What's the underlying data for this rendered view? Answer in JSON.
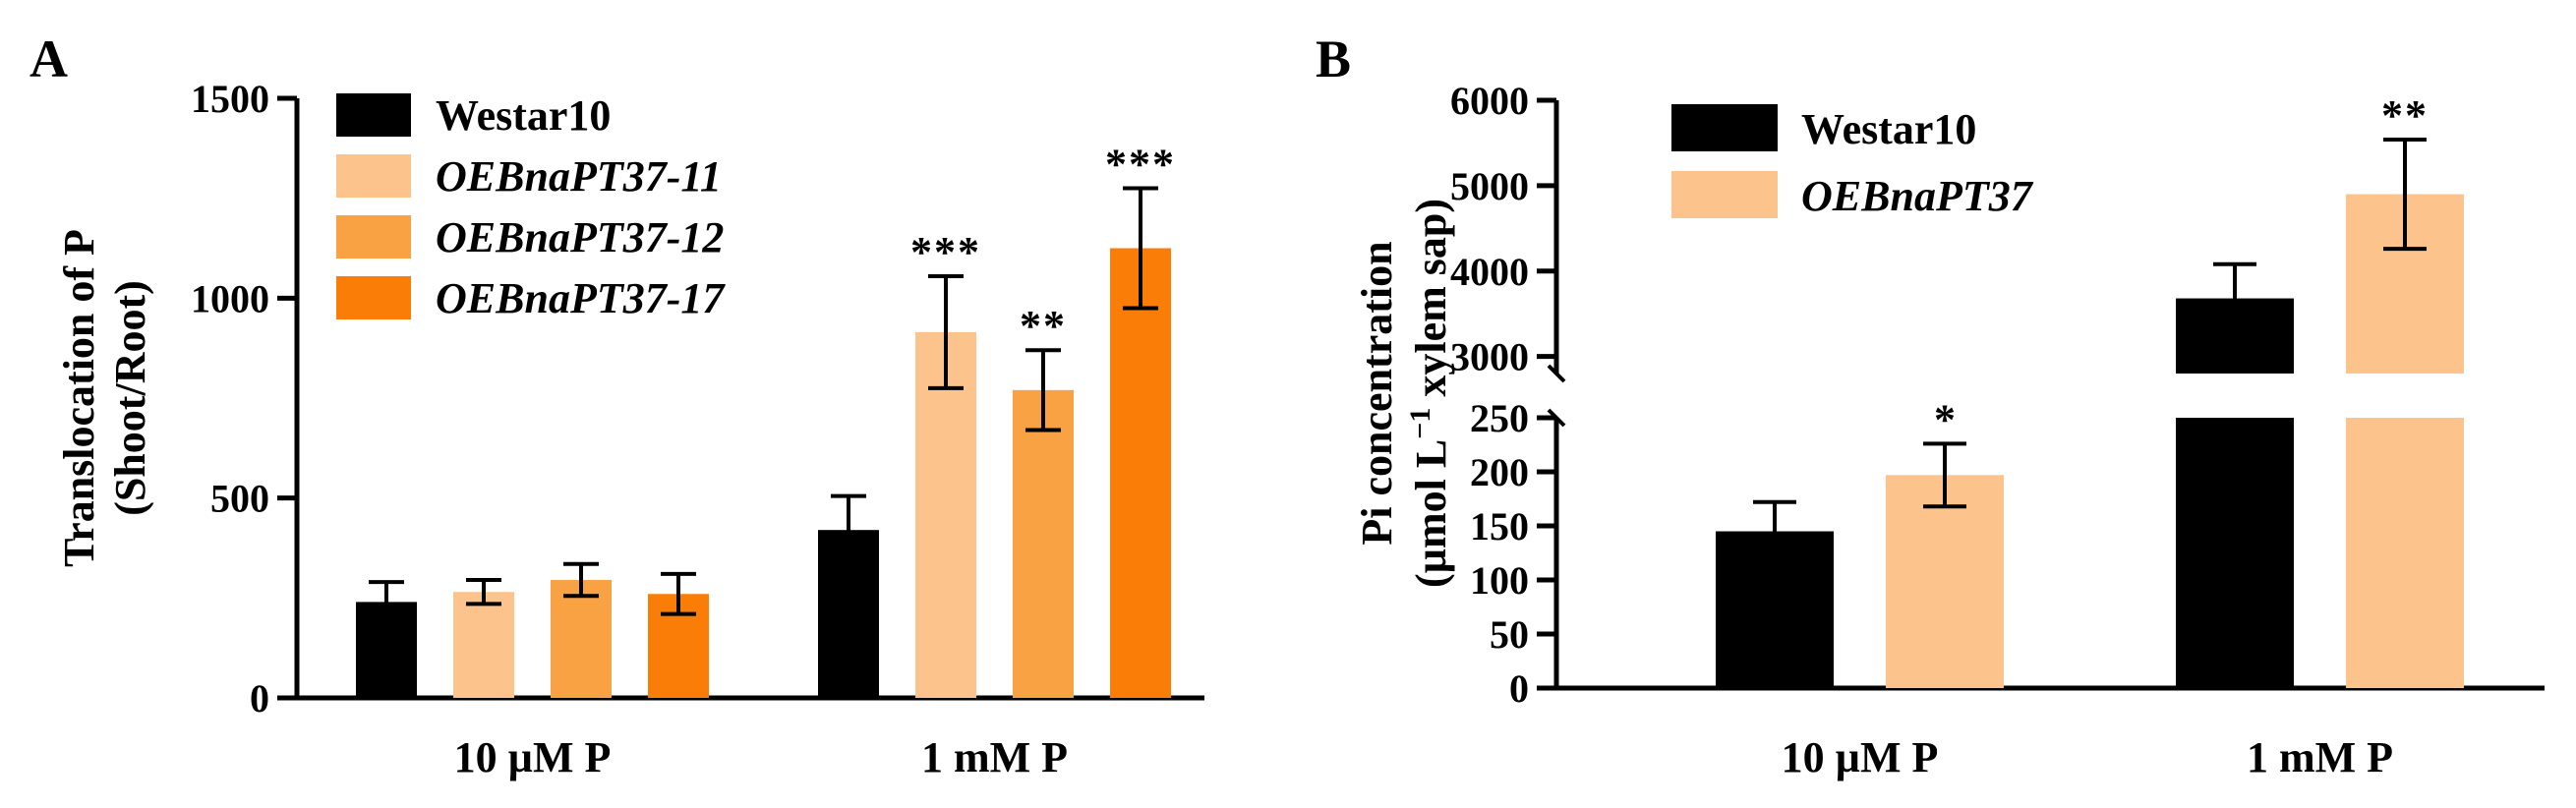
{
  "chart_data": [
    {
      "panel": "A",
      "type": "bar",
      "ylabel": [
        "Translocation of P",
        "(Shoot/Root)"
      ],
      "categories": [
        "10 µM P",
        "1 mM P"
      ],
      "ylim": [
        0,
        1500
      ],
      "yticks": [
        "0",
        "500",
        "1000",
        "1500"
      ],
      "legend_position": "top-left",
      "series": [
        {
          "name": "Westar10",
          "italic": false,
          "color": "#000000",
          "values": [
            240,
            420
          ],
          "errors": [
            50,
            85
          ],
          "sig": [
            "",
            ""
          ]
        },
        {
          "name": "OEBnaPT37-11",
          "italic": true,
          "color": "#FCC38C",
          "values": [
            265,
            915
          ],
          "errors": [
            30,
            140
          ],
          "sig": [
            "",
            "***"
          ]
        },
        {
          "name": "OEBnaPT37-12",
          "italic": true,
          "color": "#F9A244",
          "values": [
            295,
            770
          ],
          "errors": [
            40,
            100
          ],
          "sig": [
            "",
            "**"
          ]
        },
        {
          "name": "OEBnaPT37-17",
          "italic": true,
          "color": "#FA7D08",
          "values": [
            260,
            1125
          ],
          "errors": [
            50,
            150
          ],
          "sig": [
            "",
            "***"
          ]
        }
      ]
    },
    {
      "panel": "B",
      "type": "bar",
      "ylabel": [
        "Pi concentration",
        "(µmol L",
        "−1",
        " xylem sap)"
      ],
      "categories": [
        "10 µM P",
        "1 mM P"
      ],
      "ylim": [
        0,
        6000
      ],
      "axis_break": {
        "lower": [
          0,
          250
        ],
        "upper": [
          2800,
          6000
        ]
      },
      "yticks_lower": [
        "0",
        "50",
        "100",
        "150",
        "200",
        "250"
      ],
      "yticks_upper": [
        "3000",
        "4000",
        "5000",
        "6000"
      ],
      "legend_position": "top-left",
      "series": [
        {
          "name": "Westar10",
          "italic": false,
          "color": "#000000",
          "values": [
            145,
            3680
          ],
          "errors": [
            27,
            400
          ],
          "sig": [
            "",
            ""
          ]
        },
        {
          "name": "OEBnaPT37",
          "italic": true,
          "color": "#FCC38C",
          "values": [
            197,
            4900
          ],
          "errors": [
            29,
            640
          ],
          "sig": [
            "*",
            "**"
          ]
        }
      ]
    }
  ]
}
